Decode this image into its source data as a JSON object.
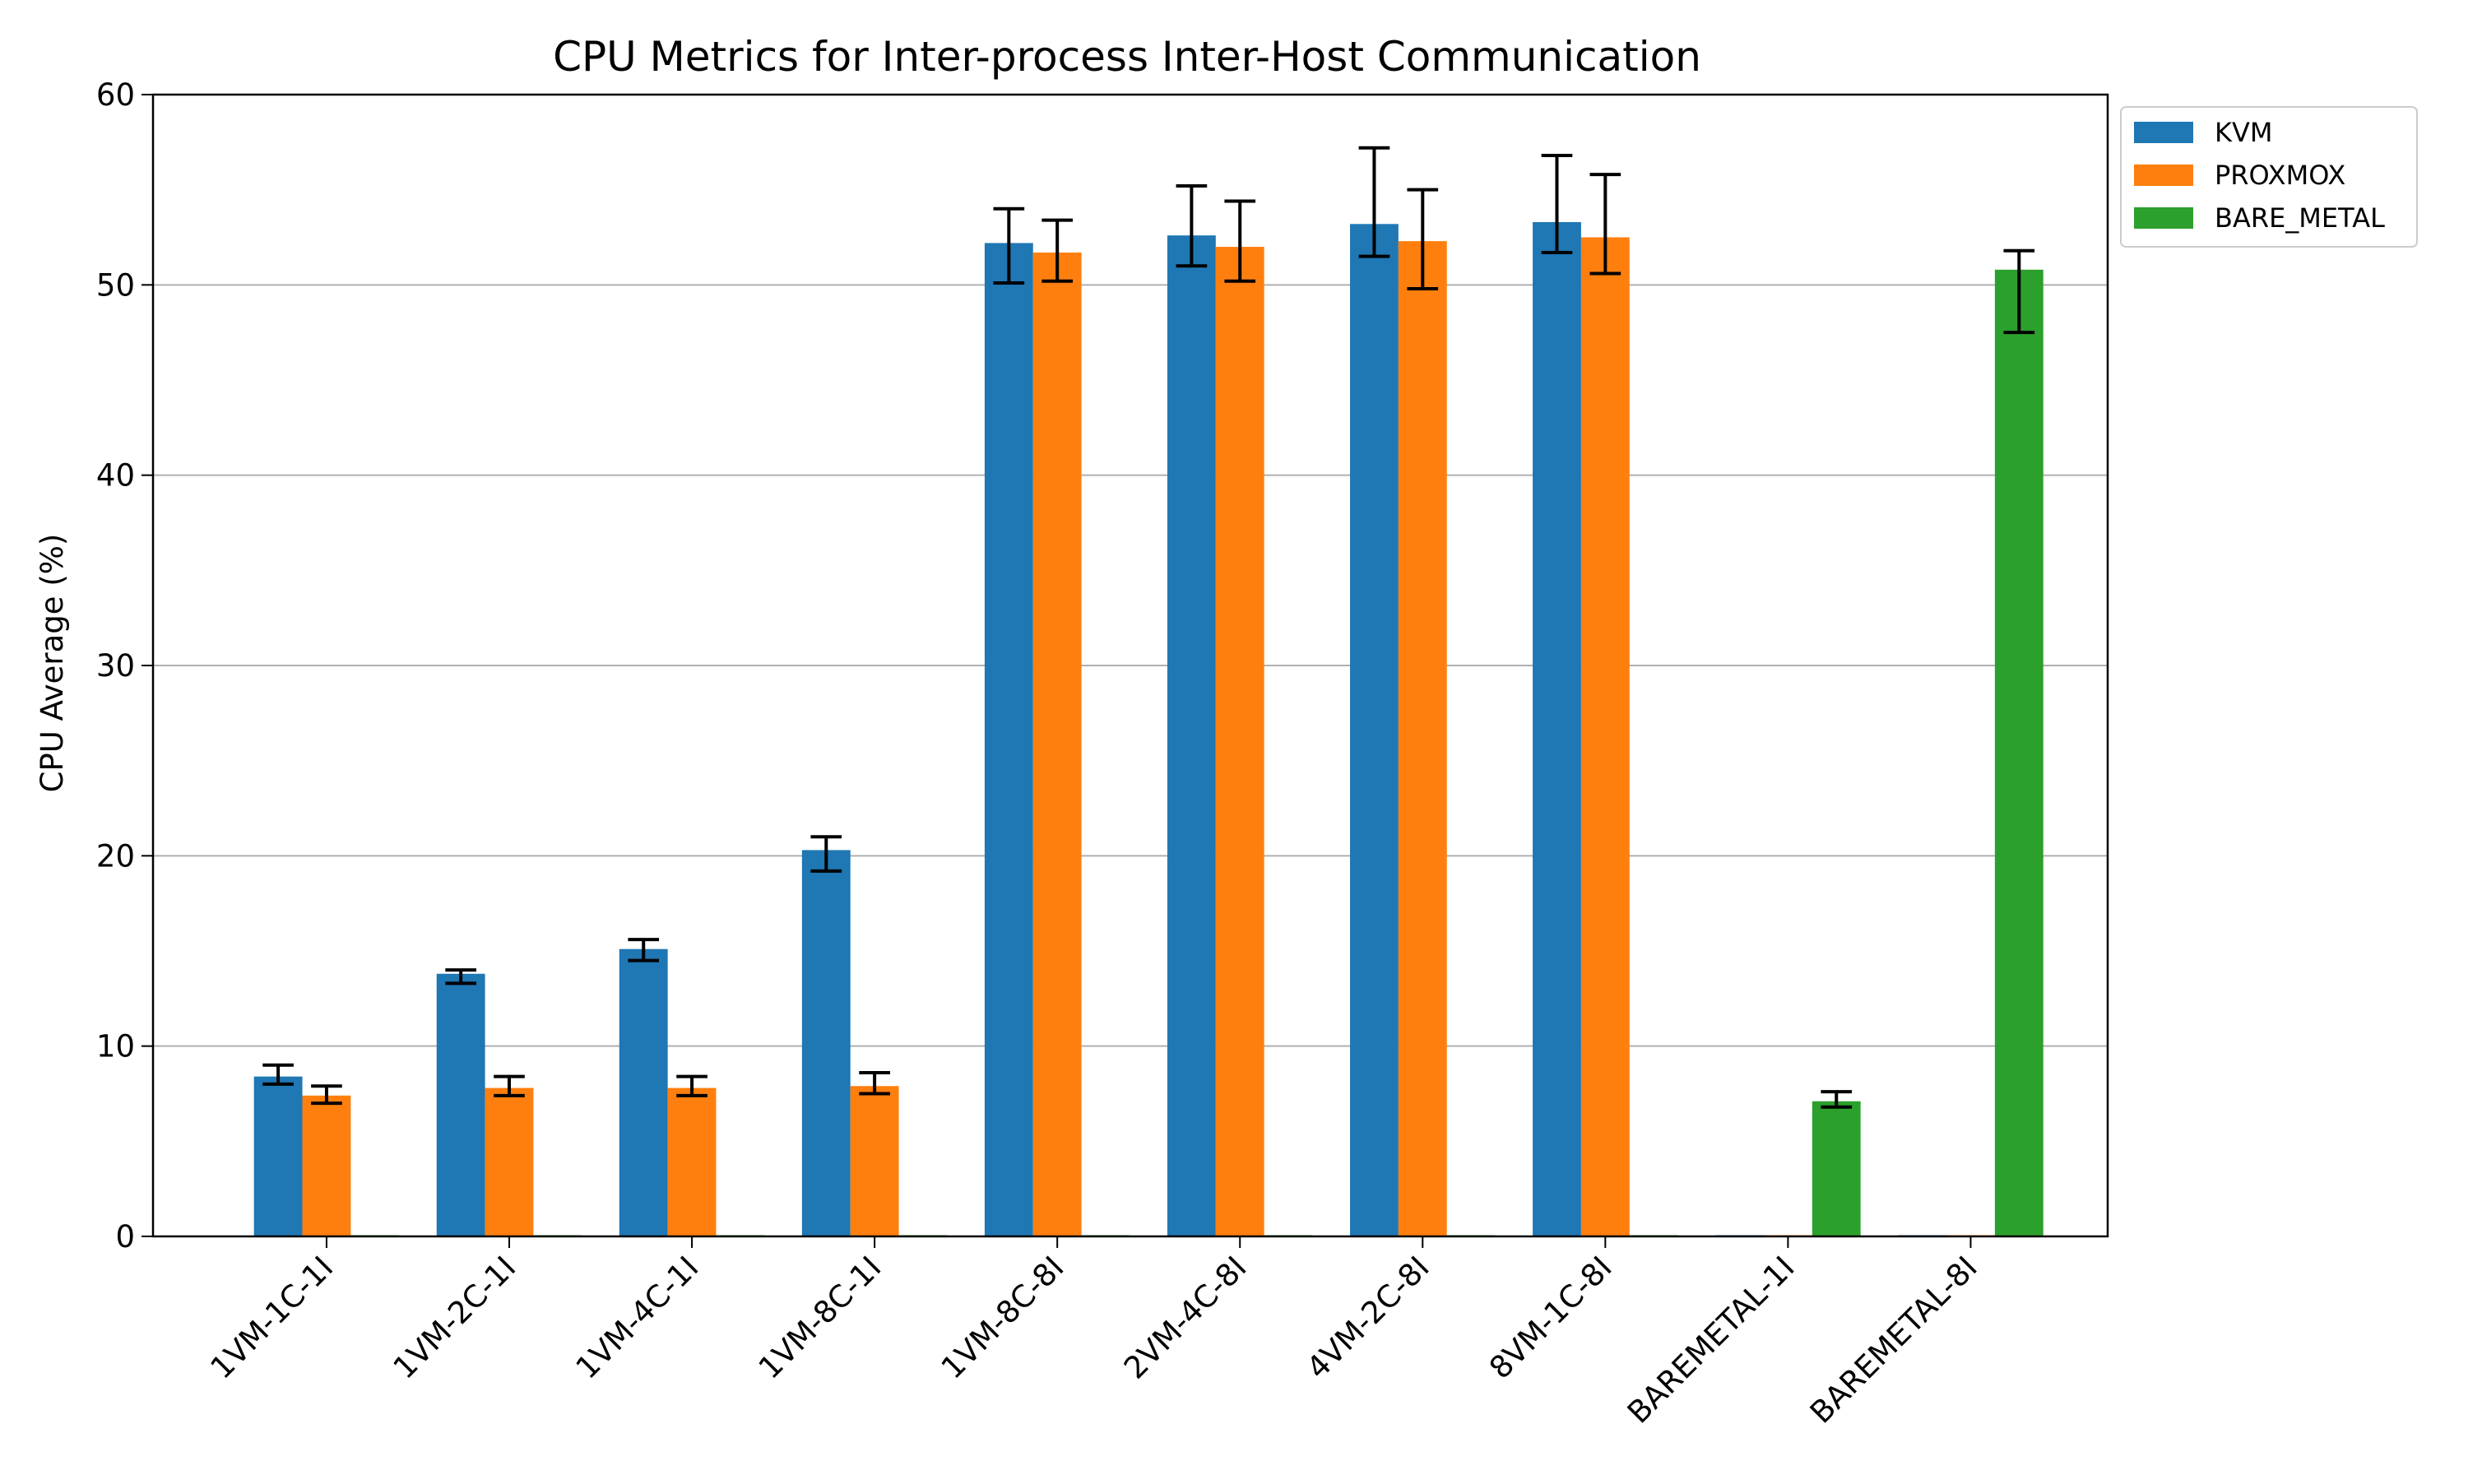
{
  "chart_data": {
    "type": "bar",
    "title": "CPU Metrics for Inter-process Inter-Host Communication",
    "xlabel": "",
    "ylabel": "CPU Average (%)",
    "ylim": [
      0,
      60
    ],
    "yticks": [
      "0",
      "10",
      "20",
      "30",
      "40",
      "50",
      "60"
    ],
    "grid": "horizontal",
    "legend_position": "top-right outside",
    "categories": [
      "1VM-1C-1I",
      "1VM-2C-1I",
      "1VM-4C-1I",
      "1VM-8C-1I",
      "1VM-8C-8I",
      "2VM-4C-8I",
      "4VM-2C-8I",
      "8VM-1C-8I",
      "BAREMETAL-1I",
      "BAREMETAL-8I"
    ],
    "series": [
      {
        "name": "KVM",
        "color": "#1f77b4",
        "values": [
          8.4,
          13.8,
          15.1,
          20.3,
          52.2,
          52.6,
          53.2,
          53.3,
          0,
          0
        ],
        "error_low": [
          8.0,
          13.3,
          14.5,
          19.2,
          50.1,
          51.0,
          51.5,
          51.7,
          null,
          null
        ],
        "error_high": [
          9.0,
          14.0,
          15.6,
          21.0,
          54.0,
          55.2,
          57.2,
          56.8,
          null,
          null
        ]
      },
      {
        "name": "PROXMOX",
        "color": "#ff7f0e",
        "values": [
          7.4,
          7.8,
          7.8,
          7.9,
          51.7,
          52.0,
          52.3,
          52.5,
          0,
          0
        ],
        "error_low": [
          7.0,
          7.4,
          7.4,
          7.5,
          50.2,
          50.2,
          49.8,
          50.6,
          null,
          null
        ],
        "error_high": [
          7.9,
          8.4,
          8.4,
          8.6,
          53.4,
          54.4,
          55.0,
          55.8,
          null,
          null
        ]
      },
      {
        "name": "BARE_METAL",
        "color": "#2ca02c",
        "values": [
          0,
          0,
          0,
          0,
          0,
          0,
          0,
          0,
          7.1,
          50.8
        ],
        "error_low": [
          null,
          null,
          null,
          null,
          null,
          null,
          null,
          null,
          6.8,
          47.5
        ],
        "error_high": [
          null,
          null,
          null,
          null,
          null,
          null,
          null,
          null,
          7.6,
          51.8
        ]
      }
    ]
  }
}
